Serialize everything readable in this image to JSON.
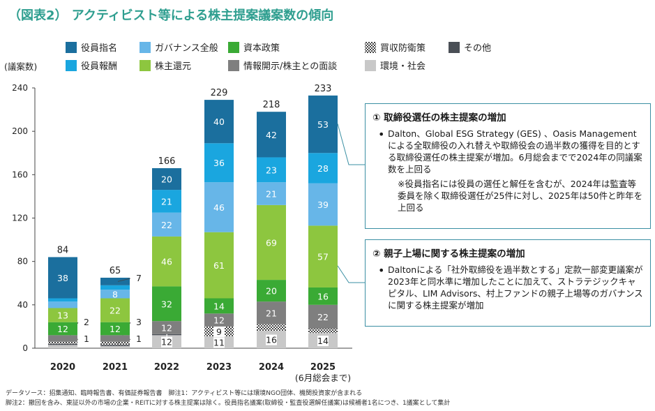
{
  "page": {
    "title": "（図表2） アクティビスト等による株主提案議案数の傾向",
    "footnote1": "データソース：招集通知、臨時報告書、有価証券報告書　脚注1：アクティビスト等には環境NGO団体、機関投資家が含まれる",
    "footnote2": "脚注2：撤回を含み、東証以外の市場の企業・REITに対する株主提案は除く。役員指名議案(取締役・監査役選解任議案)は候補者1名につき、1議案として集計"
  },
  "callouts": [
    {
      "title": "① 取締役選任の株主提案の増加",
      "bullet": "•",
      "text": "Dalton、Global ESG Strategy (GES) 、Oasis Managementによる全取締役の入れ替えや取締役会の過半数の獲得を目的とする取締役選任の株主提案が増加。6月総会までで2024年の同議案数を上回る",
      "note": "※役員指名には役員の選任と解任を含むが、2024年は監査等委員を除く取締役選任が25件に対し、2025年は50件と昨年を上回る"
    },
    {
      "title": "② 親子上場に関する株主提案の増加",
      "bullet": "•",
      "text": "Daltonによる「社外取締役を過半数とする」定款一部変更議案が2023年と同水準に増加したことに加えて、ストラテジックキャピタル、LIM Advisors、村上ファンドの親子上場等のガバナンスに関する株主提案が増加"
    }
  ],
  "chart_data": {
    "type": "bar",
    "stacked": true,
    "categories": [
      "2020",
      "2021",
      "2022",
      "2023",
      "2024",
      "2025"
    ],
    "category_sub": [
      "",
      "",
      "",
      "",
      "",
      "(6月総会まで)"
    ],
    "ylabel": "(議案数)",
    "ylim": [
      0,
      240
    ],
    "yticks": [
      0,
      40,
      80,
      120,
      160,
      200,
      240
    ],
    "grid": false,
    "legend_position": "top",
    "totals": [
      84,
      65,
      166,
      229,
      218,
      233
    ],
    "series": [
      {
        "name": "環境・社会",
        "color": "#c8c8c8",
        "pattern": "none",
        "values": [
          3,
          2,
          12,
          11,
          16,
          14
        ]
      },
      {
        "name": "その他",
        "color": "#4a4f56",
        "pattern": "none",
        "values": [
          1,
          1,
          1,
          0,
          0,
          0
        ]
      },
      {
        "name": "買収防衛策",
        "color": "#8a8a8a",
        "pattern": "checker",
        "values": [
          2,
          3,
          0,
          9,
          6,
          4
        ]
      },
      {
        "name": "情報開示/株主との面談",
        "color": "#7f7f7f",
        "pattern": "none",
        "values": [
          6,
          6,
          12,
          12,
          21,
          22
        ]
      },
      {
        "name": "資本政策",
        "color": "#3aaa35",
        "pattern": "none",
        "values": [
          12,
          12,
          32,
          14,
          20,
          16
        ]
      },
      {
        "name": "株主還元",
        "color": "#8dc63f",
        "pattern": "none",
        "values": [
          13,
          22,
          46,
          61,
          69,
          57
        ]
      },
      {
        "name": "ガバナンス全般",
        "color": "#67b6e8",
        "pattern": "none",
        "values": [
          6,
          8,
          22,
          46,
          21,
          39
        ]
      },
      {
        "name": "役員報酬",
        "color": "#1aa6df",
        "pattern": "none",
        "values": [
          3,
          4,
          21,
          36,
          23,
          28
        ]
      },
      {
        "name": "役員指名",
        "color": "#1b6f9e",
        "pattern": "none",
        "values": [
          38,
          7,
          20,
          40,
          42,
          53
        ]
      }
    ],
    "legend_order": [
      "役員指名",
      "ガバナンス全般",
      "資本政策",
      "買収防衛策",
      "その他",
      "役員報酬",
      "株主還元",
      "情報開示/株主との面談",
      "環境・社会"
    ]
  }
}
